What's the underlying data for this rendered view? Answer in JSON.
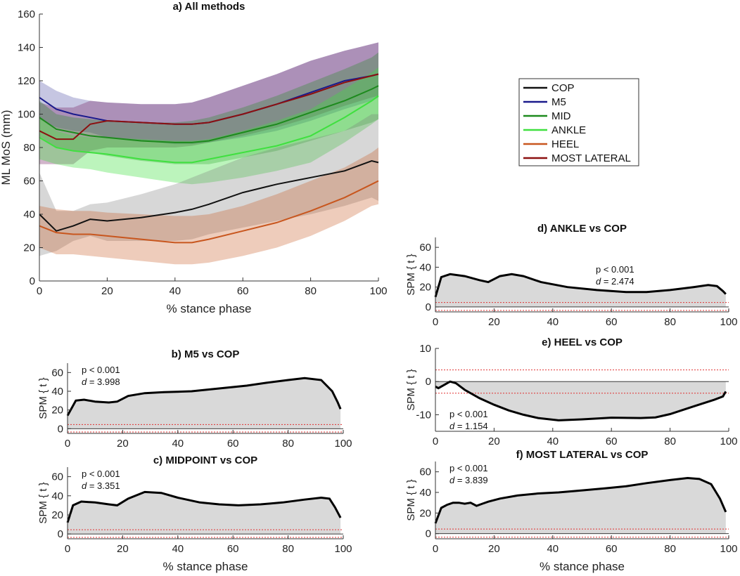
{
  "figure": {
    "colors": {
      "COP": "#111111",
      "M5": "#1a1a8c",
      "MID": "#1d8a1d",
      "ANKLE": "#3fe03f",
      "HEEL": "#c8561e",
      "MOST LATERAL": "#8c1010",
      "spm_fill": "#d9d9d9",
      "threshold": "#e03030"
    }
  },
  "chart_data": [
    {
      "id": "a",
      "type": "line",
      "title": "a) All methods",
      "xlabel": "% stance phase",
      "ylabel": "ML MoS (mm)",
      "xlim": [
        0,
        100
      ],
      "ylim": [
        0,
        160
      ],
      "xticks": [
        0,
        20,
        40,
        60,
        80,
        100
      ],
      "yticks": [
        0,
        20,
        40,
        60,
        80,
        100,
        120,
        140,
        160
      ],
      "legend_position": "right",
      "x": [
        0,
        5,
        10,
        15,
        20,
        30,
        40,
        45,
        50,
        60,
        70,
        80,
        90,
        98,
        100
      ],
      "series": [
        {
          "name": "COP",
          "mean": [
            40,
            30,
            33,
            37,
            36,
            38,
            41,
            43,
            46,
            53,
            58,
            62,
            66,
            72,
            71
          ],
          "upper": [
            65,
            42,
            42,
            46,
            47,
            52,
            58,
            62,
            66,
            74,
            80,
            85,
            90,
            100,
            100
          ],
          "lower": [
            15,
            18,
            24,
            27,
            24,
            24,
            24,
            25,
            28,
            32,
            36,
            40,
            45,
            50,
            48
          ]
        },
        {
          "name": "M5",
          "mean": [
            110,
            103,
            100,
            98,
            96,
            95,
            94,
            94,
            95,
            100,
            106,
            113,
            120,
            123,
            124
          ],
          "upper": [
            120,
            114,
            110,
            108,
            107,
            106,
            106,
            107,
            110,
            117,
            124,
            132,
            138,
            142,
            143
          ],
          "lower": [
            97,
            92,
            90,
            89,
            86,
            84,
            82,
            82,
            83,
            86,
            90,
            96,
            103,
            108,
            110
          ]
        },
        {
          "name": "MID",
          "mean": [
            98,
            91,
            89,
            87,
            86,
            84,
            83,
            83,
            84,
            89,
            94,
            101,
            108,
            115,
            117
          ],
          "upper": [
            108,
            100,
            98,
            97,
            96,
            95,
            95,
            96,
            98,
            104,
            111,
            119,
            127,
            134,
            137
          ],
          "lower": [
            86,
            80,
            78,
            77,
            75,
            72,
            70,
            70,
            70,
            74,
            78,
            84,
            90,
            95,
            97
          ]
        },
        {
          "name": "ANKLE",
          "mean": [
            86,
            80,
            78,
            77,
            76,
            73,
            71,
            71,
            73,
            77,
            81,
            87,
            98,
            108,
            111
          ],
          "upper": [
            98,
            90,
            87,
            86,
            86,
            85,
            84,
            84,
            85,
            90,
            96,
            103,
            115,
            125,
            128
          ],
          "lower": [
            73,
            70,
            68,
            67,
            65,
            62,
            59,
            58,
            59,
            62,
            66,
            71,
            83,
            94,
            97
          ]
        },
        {
          "name": "HEEL",
          "mean": [
            33,
            29,
            28,
            28,
            27,
            25,
            23,
            23,
            25,
            30,
            35,
            42,
            50,
            58,
            60
          ],
          "upper": [
            45,
            43,
            42,
            42,
            41,
            40,
            39,
            39,
            40,
            45,
            52,
            60,
            68,
            77,
            80
          ],
          "lower": [
            20,
            16,
            16,
            15,
            14,
            12,
            10,
            10,
            11,
            15,
            20,
            27,
            36,
            45,
            46
          ]
        },
        {
          "name": "MOST LATERAL",
          "mean": [
            90,
            85,
            85,
            94,
            96,
            95,
            94,
            94,
            95,
            100,
            106,
            112,
            119,
            123,
            124
          ],
          "upper": [
            107,
            104,
            104,
            108,
            107,
            106,
            106,
            107,
            110,
            117,
            124,
            132,
            138,
            142,
            143
          ],
          "lower": [
            70,
            70,
            70,
            78,
            80,
            80,
            80,
            81,
            83,
            87,
            92,
            98,
            105,
            110,
            111
          ]
        }
      ]
    },
    {
      "id": "b",
      "type": "area",
      "title": "b) M5 vs COP",
      "xlabel": "",
      "ylabel": "SPM { t }",
      "xlim": [
        0,
        100
      ],
      "ylim": [
        -5,
        70
      ],
      "xticks": [
        0,
        20,
        40,
        60,
        80,
        100
      ],
      "yticks": [
        0,
        20,
        40,
        60
      ],
      "annotation": [
        "p < 0.001",
        "= 3.998"
      ],
      "annotation_position": "top-left",
      "thresholds": [
        4.5,
        -3.5
      ],
      "x": [
        0,
        3,
        6,
        10,
        15,
        18,
        22,
        28,
        35,
        45,
        55,
        65,
        72,
        80,
        86,
        92,
        96,
        98,
        99
      ],
      "values": [
        14,
        30,
        31,
        29,
        28,
        29,
        35,
        38,
        39,
        40,
        43,
        46,
        49,
        52,
        54,
        52,
        40,
        28,
        21
      ]
    },
    {
      "id": "c",
      "type": "area",
      "title": "c) MIDPOINT vs COP",
      "xlabel": "% stance phase",
      "ylabel": "SPM { t }",
      "xlim": [
        0,
        100
      ],
      "ylim": [
        -5,
        70
      ],
      "xticks": [
        0,
        20,
        40,
        60,
        80,
        100
      ],
      "yticks": [
        0,
        20,
        40,
        60
      ],
      "annotation": [
        "p < 0.001",
        "= 3.351"
      ],
      "annotation_position": "top-left",
      "thresholds": [
        4.5,
        -3.5
      ],
      "x": [
        0,
        2,
        5,
        10,
        15,
        18,
        22,
        28,
        34,
        40,
        48,
        55,
        62,
        70,
        78,
        86,
        92,
        95,
        97,
        99
      ],
      "values": [
        12,
        30,
        34,
        33,
        31,
        30,
        37,
        44,
        43,
        38,
        33,
        31,
        30,
        31,
        33,
        36,
        38,
        37,
        28,
        17
      ]
    },
    {
      "id": "d",
      "type": "area",
      "title": "d) ANKLE vs COP",
      "xlabel": "",
      "ylabel": "SPM { t }",
      "xlim": [
        0,
        100
      ],
      "ylim": [
        -5,
        70
      ],
      "xticks": [
        0,
        20,
        40,
        60,
        80,
        100
      ],
      "yticks": [
        0,
        20,
        40,
        60
      ],
      "annotation": [
        "p < 0.001",
        "= 2.474"
      ],
      "annotation_position": "top-center-right",
      "thresholds": [
        4.5,
        -3.5
      ],
      "x": [
        0,
        2,
        5,
        10,
        15,
        18,
        22,
        26,
        30,
        36,
        45,
        55,
        65,
        72,
        80,
        88,
        93,
        96,
        98,
        99
      ],
      "values": [
        10,
        30,
        33,
        31,
        27,
        25,
        31,
        33,
        31,
        25,
        20,
        17,
        15,
        15,
        17,
        20,
        22,
        21,
        16,
        13
      ]
    },
    {
      "id": "e",
      "type": "area",
      "title": "e) HEEL vs COP",
      "xlabel": "",
      "ylabel": "SPM { t }",
      "xlim": [
        0,
        100
      ],
      "ylim": [
        -15,
        10
      ],
      "xticks": [
        0,
        20,
        40,
        60,
        80,
        100
      ],
      "yticks": [
        -10,
        0,
        10
      ],
      "annotation": [
        "p < 0.001",
        "= 1.154"
      ],
      "annotation_position": "bottom-left",
      "thresholds": [
        3.5,
        -3.5
      ],
      "x": [
        0,
        1,
        3,
        5,
        7,
        10,
        15,
        20,
        25,
        30,
        35,
        42,
        50,
        60,
        70,
        75,
        80,
        88,
        95,
        98,
        99
      ],
      "values": [
        -1.5,
        -2,
        -1,
        0,
        -0.5,
        -2.5,
        -5,
        -7,
        -8.7,
        -10,
        -11,
        -11.7,
        -11.4,
        -10.9,
        -11,
        -10.8,
        -9.8,
        -7.5,
        -5.5,
        -4.5,
        -3
      ]
    },
    {
      "id": "f",
      "type": "area",
      "title": "f) MOST LATERAL vs COP",
      "xlabel": "% stance phase",
      "ylabel": "SPM { t }",
      "xlim": [
        0,
        100
      ],
      "ylim": [
        -5,
        70
      ],
      "xticks": [
        0,
        20,
        40,
        60,
        80,
        100
      ],
      "yticks": [
        0,
        20,
        40,
        60
      ],
      "annotation": [
        "p < 0.001",
        "= 3.839"
      ],
      "annotation_position": "top-left",
      "thresholds": [
        4.5,
        -3.5
      ],
      "x": [
        0,
        2,
        4,
        6,
        8,
        10,
        12,
        14,
        16,
        18,
        22,
        28,
        35,
        42,
        50,
        58,
        65,
        72,
        80,
        86,
        90,
        94,
        97,
        99
      ],
      "values": [
        10,
        25,
        28,
        30,
        30,
        29,
        30,
        27,
        29,
        31,
        34,
        37,
        39,
        40,
        42,
        44,
        46,
        49,
        52,
        54,
        53,
        48,
        34,
        21
      ]
    }
  ]
}
